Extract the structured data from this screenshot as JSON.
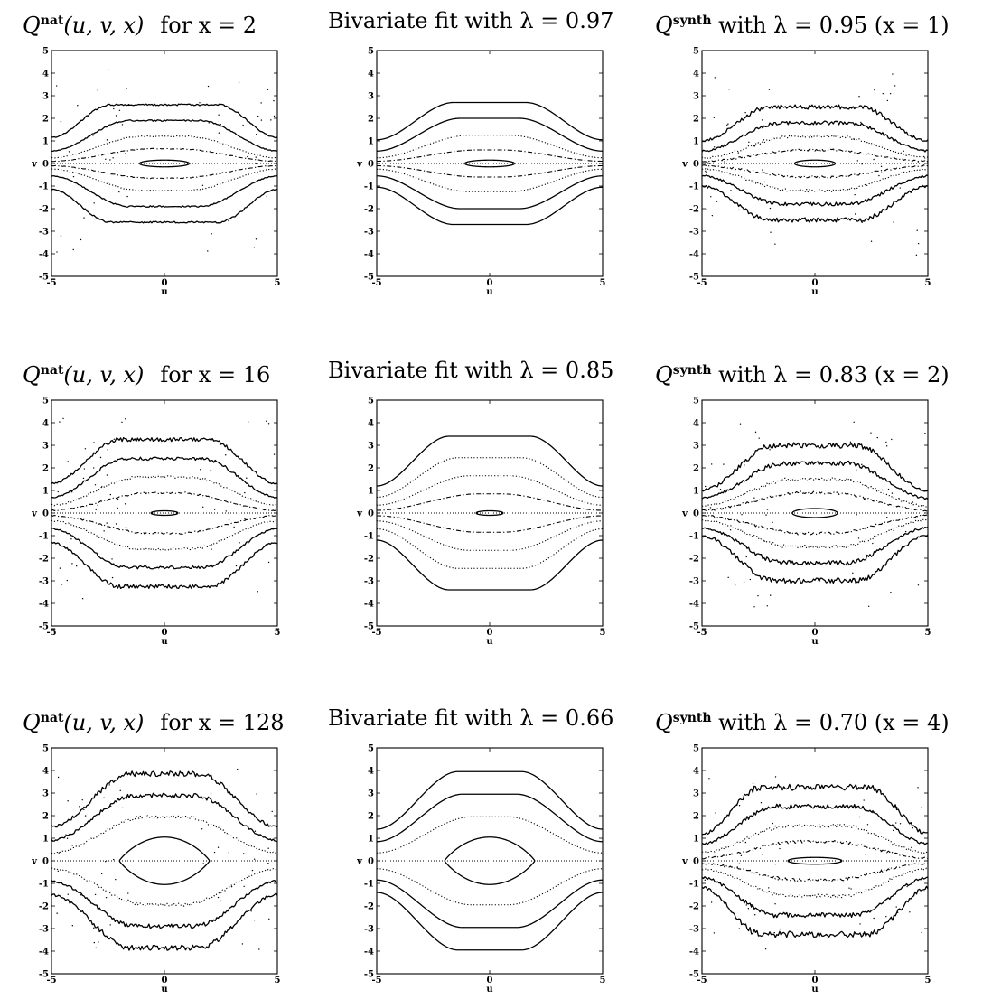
{
  "figure": {
    "axis_label_x": "u",
    "axis_label_y": "v",
    "ticks": [
      "-5",
      "-4",
      "-3",
      "-2",
      "-1",
      "0",
      "1",
      "2",
      "3",
      "4",
      "5"
    ],
    "x_ticks": [
      "-5",
      "0",
      "5"
    ]
  },
  "panels": [
    {
      "q": "Q",
      "sup": "nat",
      "args": "(u, v, x)",
      "tail": "for x = 2"
    },
    {
      "text": "Bivariate fit with λ = 0.97"
    },
    {
      "q": "Q",
      "sup": "synth",
      "tail": "with λ = 0.95 (x = 1)"
    },
    {
      "q": "Q",
      "sup": "nat",
      "args": "(u, v, x)",
      "tail": "for x = 16"
    },
    {
      "text": "Bivariate fit with λ = 0.85"
    },
    {
      "q": "Q",
      "sup": "synth",
      "tail": "with λ = 0.83 (x = 2)"
    },
    {
      "q": "Q",
      "sup": "nat",
      "args": "(u, v, x)",
      "tail": "for x = 128"
    },
    {
      "text": "Bivariate fit with λ = 0.66"
    },
    {
      "q": "Q",
      "sup": "synth",
      "tail": "with λ = 0.70 (x = 4)"
    }
  ],
  "chart_data": [
    {
      "type": "contour",
      "x_range": [
        -5,
        5
      ],
      "y_range": [
        -5,
        5
      ],
      "xlabel": "u",
      "ylabel": "v",
      "noise": 0.03,
      "contours": [
        {
          "style": "solid",
          "plateau": 2.6,
          "edge": 1.15,
          "flat_half_width": 2.4
        },
        {
          "style": "solid",
          "plateau": 1.9,
          "edge": 0.55,
          "flat_half_width": 1.6
        },
        {
          "style": "dotted",
          "plateau": 1.2,
          "edge": 0.25,
          "flat_half_width": 1.0
        },
        {
          "style": "dashed",
          "plateau": 0.65,
          "edge": 0.1,
          "flat_half_width": 0.6
        },
        {
          "style": "solid",
          "plateau": 0.15,
          "edge": 0.0,
          "flat_half_width": 0.4,
          "inner_half_width": 1.1
        }
      ]
    },
    {
      "type": "contour",
      "x_range": [
        -5,
        5
      ],
      "y_range": [
        -5,
        5
      ],
      "xlabel": "u",
      "ylabel": "v",
      "noise": 0,
      "contours": [
        {
          "style": "solid",
          "plateau": 2.7,
          "edge": 1.05,
          "flat_half_width": 1.6
        },
        {
          "style": "solid",
          "plateau": 2.0,
          "edge": 0.55,
          "flat_half_width": 1.3
        },
        {
          "style": "dotted",
          "plateau": 1.25,
          "edge": 0.25,
          "flat_half_width": 0.9
        },
        {
          "style": "dashed",
          "plateau": 0.6,
          "edge": 0.1,
          "flat_half_width": 0.5
        },
        {
          "style": "solid",
          "plateau": 0.15,
          "edge": 0.0,
          "flat_half_width": 0.4,
          "inner_half_width": 1.1
        }
      ]
    },
    {
      "type": "contour",
      "x_range": [
        -5,
        5
      ],
      "y_range": [
        -5,
        5
      ],
      "xlabel": "u",
      "ylabel": "v",
      "noise": 0.08,
      "contours": [
        {
          "style": "solid",
          "plateau": 2.5,
          "edge": 1.0,
          "flat_half_width": 2.0
        },
        {
          "style": "solid",
          "plateau": 1.8,
          "edge": 0.55,
          "flat_half_width": 1.5
        },
        {
          "style": "dotted",
          "plateau": 1.2,
          "edge": 0.25,
          "flat_half_width": 0.9
        },
        {
          "style": "dashed",
          "plateau": 0.6,
          "edge": 0.1,
          "flat_half_width": 0.5
        },
        {
          "style": "solid",
          "plateau": 0.15,
          "edge": 0.0,
          "flat_half_width": 0.4,
          "inner_half_width": 0.9
        }
      ]
    },
    {
      "type": "contour",
      "x_range": [
        -5,
        5
      ],
      "y_range": [
        -5,
        5
      ],
      "xlabel": "u",
      "ylabel": "v",
      "noise": 0.06,
      "contours": [
        {
          "style": "solid",
          "plateau": 3.25,
          "edge": 1.3,
          "flat_half_width": 2.0
        },
        {
          "style": "solid",
          "plateau": 2.4,
          "edge": 0.7,
          "flat_half_width": 1.7
        },
        {
          "style": "dotted",
          "plateau": 1.6,
          "edge": 0.35,
          "flat_half_width": 1.1
        },
        {
          "style": "dashed",
          "plateau": 0.9,
          "edge": 0.12,
          "flat_half_width": 0.6
        },
        {
          "style": "solid",
          "plateau": 0.1,
          "edge": 0.0,
          "flat_half_width": 0.3,
          "inner_half_width": 0.6
        }
      ]
    },
    {
      "type": "contour",
      "x_range": [
        -5,
        5
      ],
      "y_range": [
        -5,
        5
      ],
      "xlabel": "u",
      "ylabel": "v",
      "noise": 0,
      "contours": [
        {
          "style": "solid",
          "plateau": 3.4,
          "edge": 1.2,
          "flat_half_width": 1.8
        },
        {
          "style": "dotted",
          "plateau": 2.45,
          "edge": 0.7,
          "flat_half_width": 1.4
        },
        {
          "style": "dotted",
          "plateau": 1.65,
          "edge": 0.35,
          "flat_half_width": 0.9
        },
        {
          "style": "dashed",
          "plateau": 0.85,
          "edge": 0.12,
          "flat_half_width": 0.5
        },
        {
          "style": "solid",
          "plateau": 0.1,
          "edge": 0.0,
          "flat_half_width": 0.3,
          "inner_half_width": 0.6
        }
      ]
    },
    {
      "type": "contour",
      "x_range": [
        -5,
        5
      ],
      "y_range": [
        -5,
        5
      ],
      "xlabel": "u",
      "ylabel": "v",
      "noise": 0.09,
      "contours": [
        {
          "style": "solid",
          "plateau": 3.0,
          "edge": 1.0,
          "flat_half_width": 1.8
        },
        {
          "style": "solid",
          "plateau": 2.2,
          "edge": 0.65,
          "flat_half_width": 1.4
        },
        {
          "style": "dotted",
          "plateau": 1.5,
          "edge": 0.3,
          "flat_half_width": 1.0
        },
        {
          "style": "dashed",
          "plateau": 0.9,
          "edge": 0.12,
          "flat_half_width": 0.6
        },
        {
          "style": "solid",
          "plateau": 0.2,
          "edge": 0.0,
          "flat_half_width": 0.5,
          "inner_half_width": 1.0
        }
      ]
    },
    {
      "type": "contour",
      "x_range": [
        -5,
        5
      ],
      "y_range": [
        -5,
        5
      ],
      "xlabel": "u",
      "ylabel": "v",
      "noise": 0.07,
      "contours": [
        {
          "style": "solid",
          "plateau": 3.85,
          "edge": 1.5,
          "flat_half_width": 1.5
        },
        {
          "style": "solid",
          "plateau": 2.9,
          "edge": 0.9,
          "flat_half_width": 1.3
        },
        {
          "style": "dotted",
          "plateau": 1.95,
          "edge": 0.35,
          "flat_half_width": 0.8
        },
        {
          "style": "solid",
          "plateau": 1.05,
          "edge": 0.0,
          "flat_half_width": 0.0,
          "inner_half_width": 2.0,
          "lens": true
        }
      ]
    },
    {
      "type": "contour",
      "x_range": [
        -5,
        5
      ],
      "y_range": [
        -5,
        5
      ],
      "xlabel": "u",
      "ylabel": "v",
      "noise": 0,
      "contours": [
        {
          "style": "solid",
          "plateau": 3.95,
          "edge": 1.4,
          "flat_half_width": 1.4
        },
        {
          "style": "solid",
          "plateau": 2.95,
          "edge": 0.85,
          "flat_half_width": 1.2
        },
        {
          "style": "dotted",
          "plateau": 1.95,
          "edge": 0.35,
          "flat_half_width": 0.8
        },
        {
          "style": "solid",
          "plateau": 1.05,
          "edge": 0.0,
          "flat_half_width": 0.0,
          "inner_half_width": 2.0,
          "lens": true
        }
      ]
    },
    {
      "type": "contour",
      "x_range": [
        -5,
        5
      ],
      "y_range": [
        -5,
        5
      ],
      "xlabel": "u",
      "ylabel": "v",
      "noise": 0.09,
      "contours": [
        {
          "style": "solid",
          "plateau": 3.25,
          "edge": 1.2,
          "flat_half_width": 2.4
        },
        {
          "style": "solid",
          "plateau": 2.4,
          "edge": 0.75,
          "flat_half_width": 1.8
        },
        {
          "style": "dotted",
          "plateau": 1.55,
          "edge": 0.35,
          "flat_half_width": 1.2
        },
        {
          "style": "dashed",
          "plateau": 0.85,
          "edge": 0.12,
          "flat_half_width": 0.7
        },
        {
          "style": "solid",
          "plateau": 0.15,
          "edge": 0.0,
          "flat_half_width": 0.5,
          "inner_half_width": 1.2
        }
      ]
    }
  ]
}
